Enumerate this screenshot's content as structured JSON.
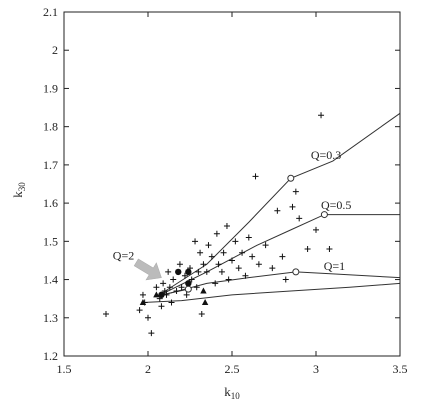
{
  "chart_data": {
    "type": "scatter",
    "title": "",
    "xlabel": "k",
    "xlabel_sub": "10",
    "ylabel": "k",
    "ylabel_sub": "30",
    "xlim": [
      1.5,
      3.5
    ],
    "ylim": [
      1.2,
      2.1
    ],
    "xticks": [
      1.5,
      2,
      2.5,
      3,
      3.5
    ],
    "xtick_labels": [
      "1.5",
      "2",
      "2.5",
      "3",
      "3.5"
    ],
    "yticks": [
      1.2,
      1.3,
      1.4,
      1.5,
      1.6,
      1.7,
      1.8,
      1.9,
      2.0,
      2.1
    ],
    "ytick_labels": [
      "1.2",
      "1.3",
      "1.4",
      "1.5",
      "1.6",
      "1.7",
      "1.8",
      "1.9",
      "2",
      "2.1"
    ],
    "grid": false,
    "scatter_plus": [
      [
        1.75,
        1.31
      ],
      [
        1.95,
        1.32
      ],
      [
        1.97,
        1.36
      ],
      [
        1.98,
        1.34
      ],
      [
        2.0,
        1.3
      ],
      [
        2.02,
        1.26
      ],
      [
        2.05,
        1.38
      ],
      [
        2.07,
        1.35
      ],
      [
        2.08,
        1.33
      ],
      [
        2.09,
        1.39
      ],
      [
        2.1,
        1.37
      ],
      [
        2.11,
        1.36
      ],
      [
        2.12,
        1.42
      ],
      [
        2.13,
        1.38
      ],
      [
        2.14,
        1.34
      ],
      [
        2.15,
        1.4
      ],
      [
        2.17,
        1.37
      ],
      [
        2.19,
        1.44
      ],
      [
        2.2,
        1.38
      ],
      [
        2.22,
        1.41
      ],
      [
        2.23,
        1.36
      ],
      [
        2.25,
        1.43
      ],
      [
        2.26,
        1.4
      ],
      [
        2.28,
        1.5
      ],
      [
        2.29,
        1.38
      ],
      [
        2.3,
        1.42
      ],
      [
        2.31,
        1.47
      ],
      [
        2.32,
        1.31
      ],
      [
        2.33,
        1.44
      ],
      [
        2.35,
        1.42
      ],
      [
        2.36,
        1.49
      ],
      [
        2.38,
        1.46
      ],
      [
        2.4,
        1.39
      ],
      [
        2.41,
        1.52
      ],
      [
        2.42,
        1.44
      ],
      [
        2.44,
        1.42
      ],
      [
        2.45,
        1.47
      ],
      [
        2.47,
        1.54
      ],
      [
        2.48,
        1.4
      ],
      [
        2.5,
        1.45
      ],
      [
        2.52,
        1.5
      ],
      [
        2.54,
        1.43
      ],
      [
        2.56,
        1.47
      ],
      [
        2.58,
        1.41
      ],
      [
        2.6,
        1.51
      ],
      [
        2.62,
        1.46
      ],
      [
        2.64,
        1.67
      ],
      [
        2.66,
        1.44
      ],
      [
        2.7,
        1.49
      ],
      [
        2.74,
        1.43
      ],
      [
        2.77,
        1.58
      ],
      [
        2.8,
        1.46
      ],
      [
        2.82,
        1.4
      ],
      [
        2.86,
        1.59
      ],
      [
        2.88,
        1.63
      ],
      [
        2.9,
        1.56
      ],
      [
        2.95,
        1.48
      ],
      [
        3.0,
        1.53
      ],
      [
        3.03,
        1.83
      ],
      [
        3.08,
        1.48
      ]
    ],
    "scatter_filled_circle": [
      [
        2.08,
        1.36
      ],
      [
        2.18,
        1.42
      ],
      [
        2.24,
        1.42
      ],
      [
        2.24,
        1.39
      ]
    ],
    "scatter_filled_triangle": [
      [
        1.97,
        1.34
      ],
      [
        2.05,
        1.36
      ],
      [
        2.33,
        1.37
      ],
      [
        2.34,
        1.34
      ]
    ],
    "arrow": {
      "label": "Q=2",
      "from": [
        1.93,
        1.445
      ],
      "to": [
        2.08,
        1.405
      ]
    },
    "series": [
      {
        "name": "Q=0.3",
        "x": [
          2.05,
          2.35,
          2.6,
          2.85,
          3.1,
          3.5
        ],
        "y": [
          1.355,
          1.44,
          1.55,
          1.665,
          1.71,
          1.835
        ],
        "marker_x": 2.85,
        "marker_y": 1.665,
        "label_x": 3.06,
        "label_y": 1.715
      },
      {
        "name": "Q=0.5",
        "x": [
          2.05,
          2.35,
          2.65,
          2.85,
          3.05,
          3.5
        ],
        "y": [
          1.355,
          1.42,
          1.49,
          1.53,
          1.57,
          1.57
        ],
        "marker_x": 3.05,
        "marker_y": 1.57,
        "label_x": 3.12,
        "label_y": 1.585
      },
      {
        "name": "Q=1",
        "x": [
          2.05,
          2.35,
          2.6,
          2.88,
          3.1,
          3.5
        ],
        "y": [
          1.355,
          1.39,
          1.405,
          1.42,
          1.415,
          1.405
        ],
        "marker_x": 2.88,
        "marker_y": 1.42,
        "label_x": 3.11,
        "label_y": 1.425
      },
      {
        "name": "",
        "x": [
          1.97,
          2.2,
          2.5,
          2.85,
          3.2,
          3.5
        ],
        "y": [
          1.34,
          1.345,
          1.36,
          1.37,
          1.38,
          1.39
        ],
        "marker_x": null,
        "marker_y": null,
        "label_x": null,
        "label_y": null
      },
      {
        "name": "",
        "x": [
          2.08,
          2.24
        ],
        "y": [
          1.36,
          1.375
        ],
        "marker_x": 2.24,
        "marker_y": 1.375,
        "label_x": null,
        "label_y": null
      }
    ],
    "colors": {
      "axis": "#222222",
      "curve": "#333333",
      "marker": "#111111",
      "arrow": "#bbbbbb"
    }
  }
}
